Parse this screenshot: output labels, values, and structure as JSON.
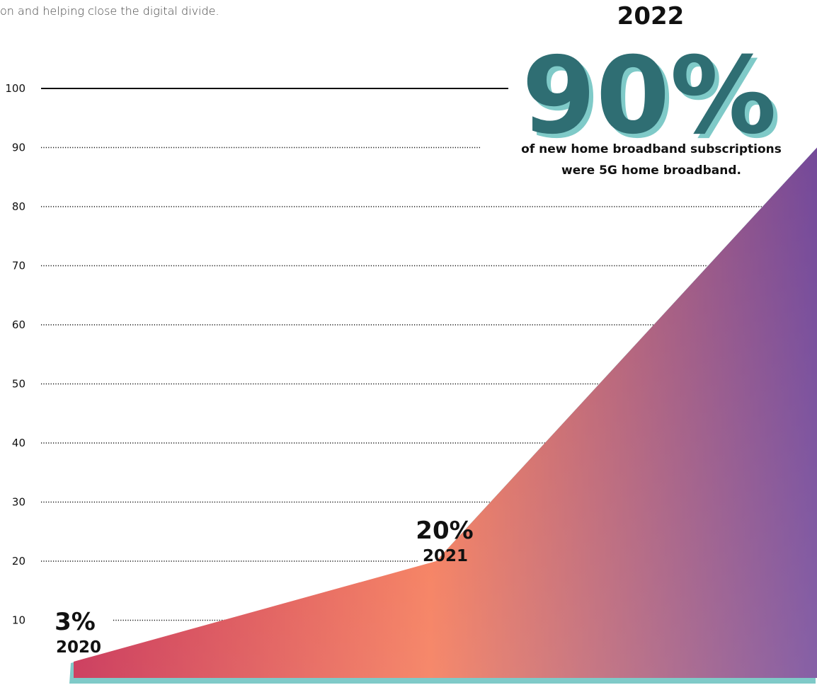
{
  "intro_text": "on and helping close the digital divide.",
  "colors": {
    "area_start": "#c2183f",
    "area_mid": "#f46f4b",
    "area_end": "#6b3d93",
    "edge": "#7fcac8",
    "hero_fill": "#2f6e73",
    "hero_shadow": "#7fcac8",
    "grid": "#111111"
  },
  "chart_data": {
    "type": "area",
    "y_ticks": [
      "100",
      "90",
      "80",
      "70",
      "60",
      "50",
      "40",
      "30",
      "20",
      "10"
    ],
    "ylim": [
      0,
      100
    ],
    "grid": true,
    "points": [
      {
        "year": "2020",
        "value": 3,
        "label": "3%"
      },
      {
        "year": "2021",
        "value": 20,
        "label": "20%"
      },
      {
        "year": "2022",
        "value": 90,
        "label": "90%"
      }
    ],
    "annotation": {
      "year": "2022",
      "value": "90%",
      "caption_line1": "of new home broadband subscriptions",
      "caption_line2": "were 5G home broadband."
    }
  }
}
